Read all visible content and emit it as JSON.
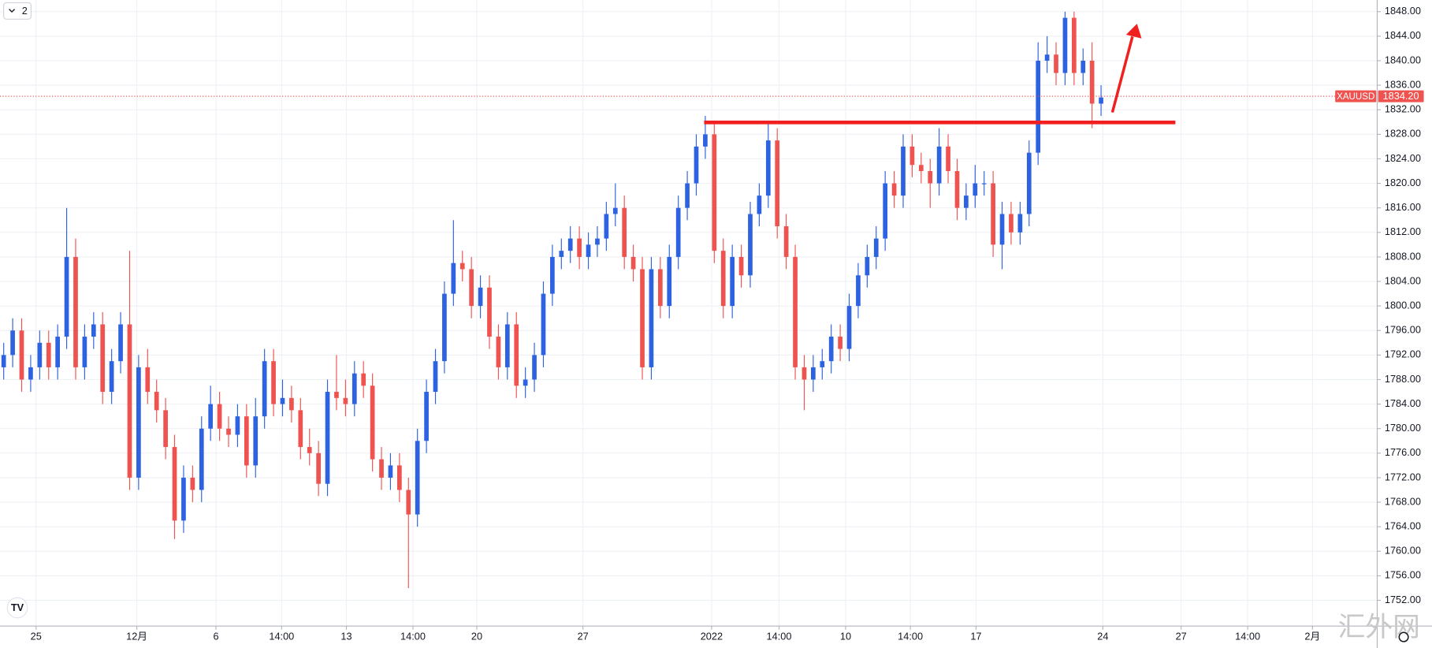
{
  "chart_data": {
    "type": "candlestick",
    "interval_badge": "2",
    "watermark": "汇外网",
    "up_color": "#2d62e0",
    "down_color": "#ef5350",
    "grid": true,
    "price_tag": {
      "symbol": "XAUUSD",
      "value": 1834.2,
      "label": "1834.20",
      "color": "#ef5350"
    },
    "open": [
      1790,
      1792,
      1796,
      1788,
      1790,
      1794,
      1790,
      1795,
      1808,
      1790,
      1795,
      1797,
      1786,
      1791,
      1797,
      1772,
      1790,
      1786,
      1783,
      1777,
      1765,
      1772,
      1770,
      1780,
      1784,
      1780,
      1779,
      1782,
      1774,
      1782,
      1791,
      1784,
      1785,
      1783,
      1777,
      1776,
      1771,
      1786,
      1785,
      1784,
      1789,
      1787,
      1775,
      1772,
      1774,
      1770,
      1766,
      1778,
      1786,
      1791,
      1802,
      1807,
      1806,
      1800,
      1803,
      1795,
      1790,
      1797,
      1787,
      1788,
      1792,
      1802,
      1808,
      1809,
      1811,
      1808,
      1810,
      1811,
      1815,
      1816,
      1808,
      1806,
      1790,
      1806,
      1800,
      1808,
      1816,
      1820,
      1826,
      1828,
      1809,
      1800,
      1808,
      1805,
      1815,
      1818,
      1827,
      1813,
      1808,
      1790,
      1788,
      1790,
      1791,
      1795,
      1793,
      1800,
      1805,
      1808,
      1811,
      1820,
      1818,
      1826,
      1823,
      1822,
      1820,
      1826,
      1822,
      1816,
      1818,
      1820,
      1820,
      1810,
      1815,
      1812,
      1815,
      1825,
      1840,
      1841,
      1838,
      1847,
      1838,
      1840,
      1833
    ],
    "high": [
      1794,
      1798,
      1798,
      1792,
      1796,
      1796,
      1797,
      1816,
      1811,
      1797,
      1799,
      1799,
      1793,
      1799,
      1809,
      1792,
      1793,
      1788,
      1785,
      1779,
      1774,
      1774,
      1782,
      1787,
      1786,
      1782,
      1784,
      1784,
      1785,
      1793,
      1793,
      1788,
      1787,
      1785,
      1780,
      1778,
      1788,
      1792,
      1788,
      1791,
      1791,
      1789,
      1777,
      1776,
      1776,
      1772,
      1780,
      1788,
      1793,
      1804,
      1814,
      1809,
      1808,
      1805,
      1805,
      1797,
      1799,
      1799,
      1790,
      1794,
      1804,
      1810,
      1811,
      1813,
      1813,
      1812,
      1813,
      1817,
      1820,
      1818,
      1810,
      1808,
      1808,
      1808,
      1810,
      1818,
      1822,
      1828,
      1831,
      1830,
      1811,
      1810,
      1810,
      1817,
      1820,
      1830,
      1829,
      1815,
      1810,
      1792,
      1792,
      1793,
      1797,
      1797,
      1802,
      1807,
      1810,
      1813,
      1822,
      1822,
      1828,
      1828,
      1825,
      1824,
      1829,
      1828,
      1824,
      1820,
      1823,
      1822,
      1822,
      1817,
      1817,
      1817,
      1827,
      1843,
      1844,
      1843,
      1848,
      1848,
      1842,
      1843,
      1836
    ],
    "low": [
      1788,
      1790,
      1786,
      1786,
      1788,
      1788,
      1788,
      1793,
      1788,
      1788,
      1793,
      1784,
      1784,
      1789,
      1770,
      1770,
      1784,
      1781,
      1775,
      1762,
      1763,
      1768,
      1768,
      1778,
      1778,
      1777,
      1777,
      1772,
      1772,
      1780,
      1782,
      1782,
      1781,
      1775,
      1774,
      1769,
      1769,
      1783,
      1782,
      1782,
      1785,
      1773,
      1770,
      1770,
      1768,
      1754,
      1764,
      1776,
      1784,
      1789,
      1800,
      1804,
      1798,
      1798,
      1793,
      1788,
      1788,
      1785,
      1785,
      1786,
      1790,
      1800,
      1806,
      1807,
      1806,
      1806,
      1808,
      1809,
      1813,
      1806,
      1804,
      1788,
      1788,
      1798,
      1798,
      1806,
      1814,
      1818,
      1824,
      1807,
      1798,
      1798,
      1803,
      1803,
      1813,
      1816,
      1811,
      1806,
      1788,
      1783,
      1786,
      1788,
      1789,
      1791,
      1791,
      1798,
      1803,
      1806,
      1809,
      1816,
      1816,
      1821,
      1820,
      1816,
      1818,
      1820,
      1814,
      1814,
      1816,
      1818,
      1808,
      1806,
      1810,
      1810,
      1813,
      1823,
      1838,
      1836,
      1836,
      1836,
      1836,
      1829,
      1831
    ],
    "close": [
      1792,
      1796,
      1788,
      1790,
      1794,
      1790,
      1795,
      1808,
      1790,
      1795,
      1797,
      1786,
      1791,
      1797,
      1772,
      1790,
      1786,
      1783,
      1777,
      1765,
      1772,
      1770,
      1780,
      1784,
      1780,
      1779,
      1782,
      1774,
      1782,
      1791,
      1784,
      1785,
      1783,
      1777,
      1776,
      1771,
      1786,
      1785,
      1784,
      1789,
      1787,
      1775,
      1772,
      1774,
      1770,
      1766,
      1778,
      1786,
      1791,
      1802,
      1807,
      1806,
      1800,
      1803,
      1795,
      1790,
      1797,
      1787,
      1788,
      1792,
      1802,
      1808,
      1809,
      1811,
      1808,
      1810,
      1811,
      1815,
      1816,
      1808,
      1806,
      1790,
      1806,
      1800,
      1808,
      1816,
      1820,
      1826,
      1828,
      1809,
      1800,
      1808,
      1805,
      1815,
      1818,
      1827,
      1813,
      1808,
      1790,
      1788,
      1790,
      1791,
      1795,
      1793,
      1800,
      1805,
      1808,
      1811,
      1820,
      1818,
      1826,
      1823,
      1822,
      1820,
      1826,
      1822,
      1816,
      1818,
      1820,
      1820,
      1810,
      1815,
      1812,
      1815,
      1825,
      1840,
      1841,
      1838,
      1847,
      1838,
      1840,
      1833,
      1834
    ],
    "xlim": [
      -0.41,
      152.7
    ],
    "xticks": [
      {
        "value": 3.6,
        "label": "25"
      },
      {
        "value": 14.8,
        "label": "12月"
      },
      {
        "value": 23.6,
        "label": "6"
      },
      {
        "value": 30.9,
        "label": "14:00"
      },
      {
        "value": 38.1,
        "label": "13"
      },
      {
        "value": 45.5,
        "label": "14:00"
      },
      {
        "value": 52.6,
        "label": "20"
      },
      {
        "value": 64.4,
        "label": "27"
      },
      {
        "value": 78.7,
        "label": "2022"
      },
      {
        "value": 86.2,
        "label": "14:00"
      },
      {
        "value": 93.6,
        "label": "10"
      },
      {
        "value": 100.8,
        "label": "14:00"
      },
      {
        "value": 108.1,
        "label": "17"
      },
      {
        "value": 122.2,
        "label": "24"
      },
      {
        "value": 130.9,
        "label": "27"
      },
      {
        "value": 138.3,
        "label": "14:00"
      },
      {
        "value": 145.5,
        "label": "2月"
      }
    ],
    "ylim": [
      1747.8,
      1849.9
    ],
    "yticks": [
      {
        "value": 1752,
        "label": "1752.00"
      },
      {
        "value": 1756,
        "label": "1756.00"
      },
      {
        "value": 1760,
        "label": "1760.00"
      },
      {
        "value": 1764,
        "label": "1764.00"
      },
      {
        "value": 1768,
        "label": "1768.00"
      },
      {
        "value": 1772,
        "label": "1772.00"
      },
      {
        "value": 1776,
        "label": "1776.00"
      },
      {
        "value": 1780,
        "label": "1780.00"
      },
      {
        "value": 1784,
        "label": "1784.00"
      },
      {
        "value": 1788,
        "label": "1788.00"
      },
      {
        "value": 1792,
        "label": "1792.00"
      },
      {
        "value": 1796,
        "label": "1796.00"
      },
      {
        "value": 1800,
        "label": "1800.00"
      },
      {
        "value": 1804,
        "label": "1804.00"
      },
      {
        "value": 1808,
        "label": "1808.00"
      },
      {
        "value": 1812,
        "label": "1812.00"
      },
      {
        "value": 1816,
        "label": "1816.00"
      },
      {
        "value": 1820,
        "label": "1820.00"
      },
      {
        "value": 1824,
        "label": "1824.00"
      },
      {
        "value": 1828,
        "label": "1828.00"
      },
      {
        "value": 1832,
        "label": "1832.00"
      },
      {
        "value": 1836,
        "label": "1836.00"
      },
      {
        "value": 1840,
        "label": "1840.00"
      },
      {
        "value": 1844,
        "label": "1844.00"
      },
      {
        "value": 1848,
        "label": "1848.00"
      }
    ]
  }
}
